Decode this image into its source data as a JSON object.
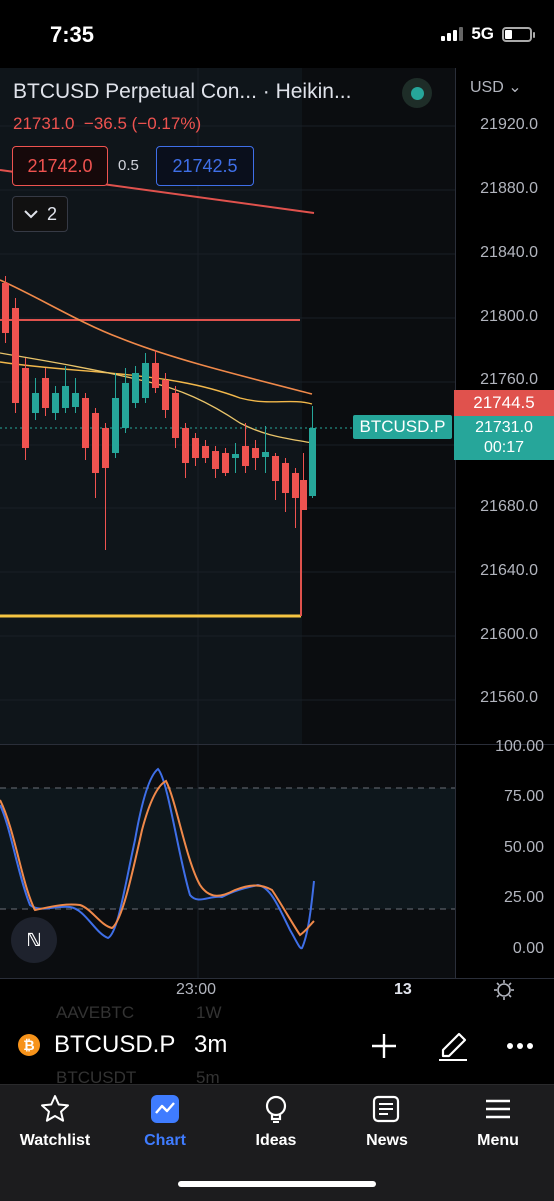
{
  "status_bar": {
    "time": "7:35",
    "network": "5G"
  },
  "chart": {
    "title": "BTCUSD Perpetual Con...  · Heikin...",
    "currency": "USD",
    "last_price": "21731.0",
    "change": "−36.5",
    "change_pct": "(−0.17%)",
    "bid": "21742.0",
    "spread": "0.5",
    "ask": "21742.5",
    "collapsed_count": "2",
    "price_ticks": [
      "21920.0",
      "21880.0",
      "21840.0",
      "21800.0",
      "21760.0",
      "21680.0",
      "21640.0",
      "21600.0",
      "21560.0"
    ],
    "price_tag_high": "21744.5",
    "price_tag_last": "21731.0",
    "countdown": "00:17",
    "symbol_tag": "BTCUSD.P",
    "oscillator_ticks": [
      "100.00",
      "75.00",
      "50.00",
      "25.00",
      "0.00"
    ],
    "time_ticks": [
      "23:00",
      "13"
    ],
    "colors": {
      "up": "#26a69a",
      "down": "#ef5350",
      "accent": "#3f7cff",
      "level": "#f5c542"
    }
  },
  "symbol_bar": {
    "ghost_top": [
      "AAVEBTC",
      "1W"
    ],
    "ghost_bottom": [
      "BTCUSDT",
      "5m"
    ],
    "symbol": "BTCUSD.P",
    "interval": "3m"
  },
  "nav": {
    "items": [
      {
        "label": "Watchlist",
        "icon": "star-icon"
      },
      {
        "label": "Chart",
        "icon": "chart-icon"
      },
      {
        "label": "Ideas",
        "icon": "lightbulb-icon"
      },
      {
        "label": "News",
        "icon": "newspaper-icon"
      },
      {
        "label": "Menu",
        "icon": "menu-icon"
      }
    ],
    "active": "Chart"
  }
}
